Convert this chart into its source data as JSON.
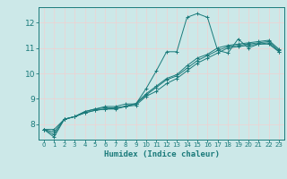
{
  "title": "",
  "xlabel": "Humidex (Indice chaleur)",
  "xlim": [
    -0.5,
    23.5
  ],
  "ylim": [
    7.4,
    12.6
  ],
  "yticks": [
    8,
    9,
    10,
    11,
    12
  ],
  "xticks": [
    0,
    1,
    2,
    3,
    4,
    5,
    6,
    7,
    8,
    9,
    10,
    11,
    12,
    13,
    14,
    15,
    16,
    17,
    18,
    19,
    20,
    21,
    22,
    23
  ],
  "bg_color": "#cce8e8",
  "line_color": "#1a7a7a",
  "grid_color": "#f5f5f5",
  "series": [
    {
      "x": [
        0,
        1,
        2,
        3,
        4,
        5,
        6,
        7,
        8,
        9,
        10,
        11,
        12,
        13,
        14,
        15,
        16,
        17,
        18,
        19,
        20,
        21,
        22,
        23
      ],
      "y": [
        7.8,
        7.5,
        8.2,
        8.3,
        8.5,
        8.6,
        8.7,
        8.7,
        8.8,
        8.8,
        9.4,
        10.1,
        10.85,
        10.85,
        12.2,
        12.35,
        12.2,
        10.9,
        10.8,
        11.35,
        11.0,
        11.15,
        11.15,
        10.85
      ]
    },
    {
      "x": [
        0,
        1,
        2,
        3,
        4,
        5,
        6,
        7,
        8,
        9,
        10,
        11,
        12,
        13,
        14,
        15,
        16,
        17,
        18,
        19,
        20,
        21,
        22,
        23
      ],
      "y": [
        7.8,
        7.6,
        8.2,
        8.3,
        8.5,
        8.6,
        8.65,
        8.65,
        8.7,
        8.75,
        9.1,
        9.3,
        9.6,
        9.8,
        10.1,
        10.4,
        10.6,
        10.8,
        11.0,
        11.05,
        11.1,
        11.15,
        11.2,
        10.85
      ]
    },
    {
      "x": [
        0,
        1,
        2,
        3,
        4,
        5,
        6,
        7,
        8,
        9,
        10,
        11,
        12,
        13,
        14,
        15,
        16,
        17,
        18,
        19,
        20,
        21,
        22,
        23
      ],
      "y": [
        7.8,
        7.7,
        8.2,
        8.3,
        8.45,
        8.55,
        8.6,
        8.6,
        8.7,
        8.8,
        9.15,
        9.45,
        9.75,
        9.9,
        10.2,
        10.5,
        10.7,
        10.9,
        11.05,
        11.1,
        11.15,
        11.2,
        11.25,
        10.9
      ]
    },
    {
      "x": [
        0,
        1,
        2,
        3,
        4,
        5,
        6,
        7,
        8,
        9,
        10,
        11,
        12,
        13,
        14,
        15,
        16,
        17,
        18,
        19,
        20,
        21,
        22,
        23
      ],
      "y": [
        7.8,
        7.8,
        8.2,
        8.3,
        8.45,
        8.55,
        8.6,
        8.62,
        8.72,
        8.82,
        9.2,
        9.5,
        9.8,
        9.95,
        10.3,
        10.6,
        10.75,
        11.0,
        11.1,
        11.15,
        11.2,
        11.25,
        11.3,
        10.95
      ]
    }
  ]
}
